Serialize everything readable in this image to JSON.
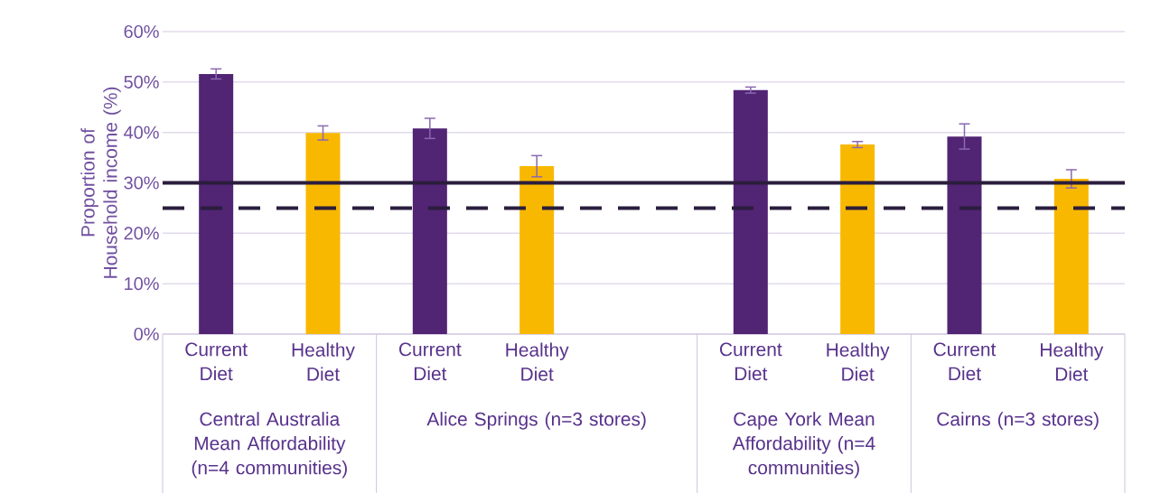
{
  "chart_data": {
    "type": "bar",
    "ylabel": "Proportion of Household income (%)",
    "categories": [
      "Current Diet",
      "Healthy Diet",
      "Current Diet",
      "Healthy Diet",
      null,
      "Current Diet",
      "Healthy Diet",
      "Current Diet",
      "Healthy Diet"
    ],
    "series": [
      {
        "color": "#512474",
        "values": [
          51.6,
          null,
          40.8,
          null,
          null,
          48.4,
          null,
          39.2,
          null
        ],
        "errors": [
          1.0,
          null,
          2.0,
          null,
          null,
          0.6,
          null,
          2.5,
          null
        ]
      },
      {
        "color": "#f8b800",
        "values": [
          null,
          39.9,
          null,
          33.3,
          null,
          null,
          37.6,
          null,
          30.8
        ],
        "errors": [
          null,
          1.4,
          null,
          2.1,
          null,
          null,
          0.6,
          null,
          1.8
        ]
      }
    ],
    "ylim": [
      0,
      60
    ],
    "yticks": [
      {
        "value": 0,
        "label": "0%"
      },
      {
        "value": 10,
        "label": "10%"
      },
      {
        "value": 20,
        "label": "20%"
      },
      {
        "value": 30,
        "label": "30%"
      },
      {
        "value": 40,
        "label": "40%"
      },
      {
        "value": 50,
        "label": "50%"
      },
      {
        "value": 60,
        "label": "60%"
      }
    ],
    "grid": "y",
    "ref_lines": [
      {
        "axis": "y",
        "value": 30,
        "color": "#2b1d3d",
        "line_style": "solid"
      },
      {
        "axis": "y",
        "value": 25,
        "color": "#2b1d3d",
        "line_style": "dashed"
      }
    ],
    "annotations": [
      "Central Australia Mean Affordability (n=4 communities)",
      "Alice Springs (n=3 stores)",
      "Cape York Mean Affordability (n=4 communities)",
      "Cairns (n=3 stores)"
    ]
  }
}
